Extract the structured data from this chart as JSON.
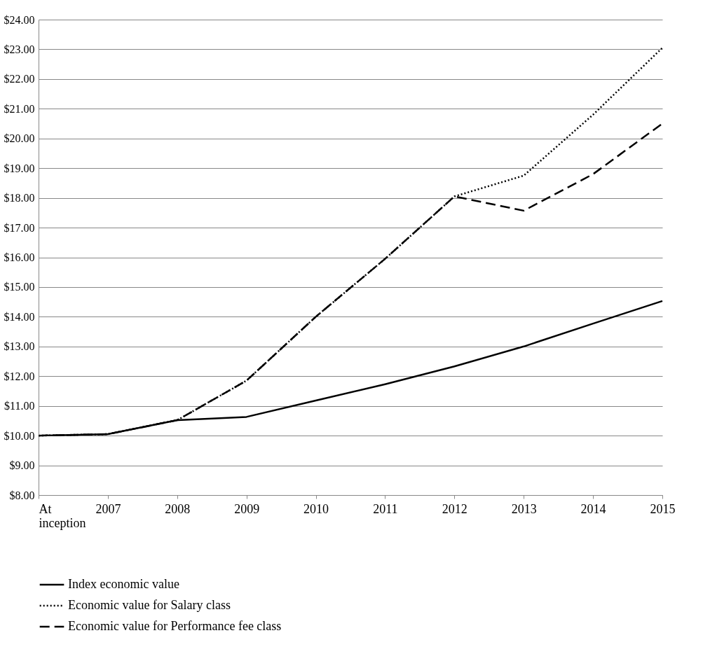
{
  "chart_data": {
    "type": "line",
    "categories": [
      "At inception",
      "2007",
      "2008",
      "2009",
      "2010",
      "2011",
      "2012",
      "2013",
      "2014",
      "2015"
    ],
    "ylim": [
      8,
      24
    ],
    "yticks": [
      {
        "value": 8,
        "label": "$8.00"
      },
      {
        "value": 9,
        "label": "$9.00"
      },
      {
        "value": 10,
        "label": "$10.00"
      },
      {
        "value": 11,
        "label": "$11.00"
      },
      {
        "value": 12,
        "label": "$12.00"
      },
      {
        "value": 13,
        "label": "$13.00"
      },
      {
        "value": 14,
        "label": "$14.00"
      },
      {
        "value": 15,
        "label": "$15.00"
      },
      {
        "value": 16,
        "label": "$16.00"
      },
      {
        "value": 17,
        "label": "$17.00"
      },
      {
        "value": 18,
        "label": "$18.00"
      },
      {
        "value": 19,
        "label": "$19.00"
      },
      {
        "value": 20,
        "label": "$20.00"
      },
      {
        "value": 21,
        "label": "$21.00"
      },
      {
        "value": 22,
        "label": "$22.00"
      },
      {
        "value": 23,
        "label": "$23.00"
      },
      {
        "value": 24,
        "label": "$24.00"
      }
    ],
    "grid": "y",
    "legend": "bottom",
    "series": [
      {
        "name": "Index economic value",
        "color": "#000000",
        "line_style": "solid",
        "values": [
          10.0,
          10.05,
          10.52,
          10.63,
          11.18,
          11.73,
          12.33,
          13.0,
          13.77,
          14.53
        ]
      },
      {
        "name": "Economic value for Salary class",
        "color": "#000000",
        "line_style": "dotted",
        "values": [
          10.0,
          10.05,
          10.52,
          11.85,
          14.0,
          15.95,
          18.05,
          18.75,
          20.8,
          23.05
        ]
      },
      {
        "name": "Economic value for Performance fee class",
        "color": "#000000",
        "line_style": "dashed",
        "values": [
          10.0,
          10.05,
          10.52,
          11.85,
          14.0,
          15.95,
          18.05,
          17.57,
          18.8,
          20.5
        ]
      }
    ]
  }
}
